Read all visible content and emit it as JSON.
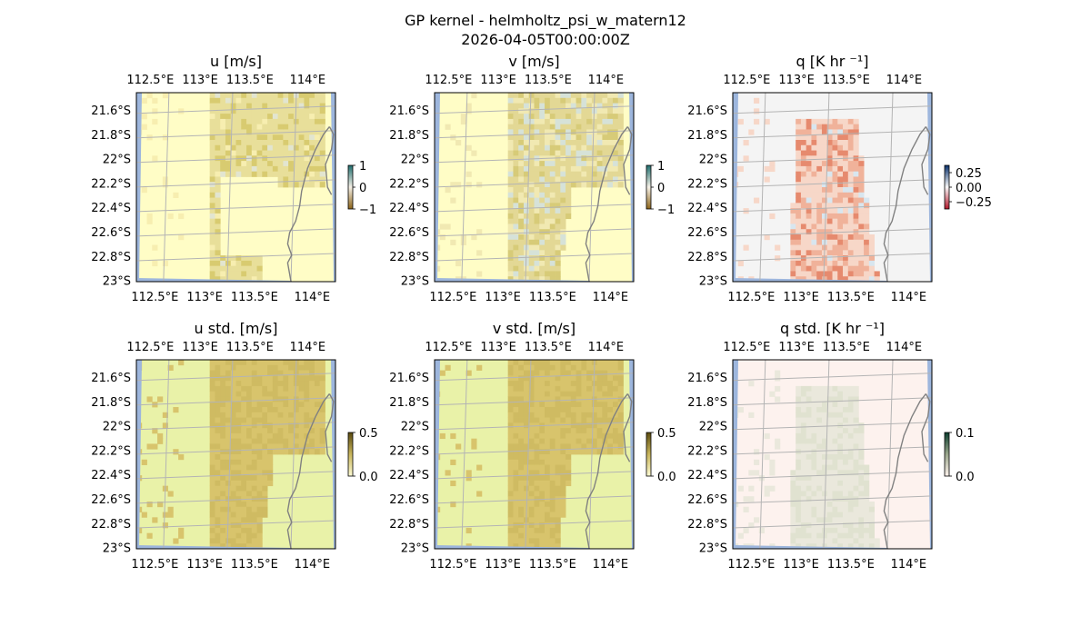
{
  "figure": {
    "title_line1": "GP kernel - helmholtz_psi_w_matern12",
    "title_line2": "2026-04-05T00:00:00Z"
  },
  "colors": {
    "ocean": "#9db6dd",
    "coast": "#808080",
    "grid": "#b4b4b4",
    "frame": "#000000"
  },
  "chart_data": [
    {
      "type": "heatmap",
      "id": "u",
      "title": "u [m/s]",
      "xticks": [
        "112.5°E",
        "113°E",
        "113.5°E",
        "114°E"
      ],
      "yticks": [
        "21.6°S",
        "21.8°S",
        "22°S",
        "22.2°S",
        "22.4°S",
        "22.6°S",
        "22.8°S",
        "23°S"
      ],
      "colorbar": {
        "ticks": [
          "1",
          "0",
          "−1"
        ],
        "range": [
          -1,
          1
        ],
        "colors": [
          "#1f6e6e",
          "#f5f0e6",
          "#8c6418"
        ]
      },
      "field": {
        "base": "#fffdc6",
        "bands": [
          [
            "#f7eeb0",
            0.05
          ],
          [
            "#e8df9a",
            0.7
          ],
          [
            "#d8cb70",
            0.2
          ],
          [
            "#e2e5d0",
            0.05
          ]
        ]
      }
    },
    {
      "type": "heatmap",
      "id": "v",
      "title": "v [m/s]",
      "xticks": [
        "112.5°E",
        "113°E",
        "113.5°E",
        "114°E"
      ],
      "yticks": [
        "21.6°S",
        "21.8°S",
        "22°S",
        "22.2°S",
        "22.4°S",
        "22.6°S",
        "22.8°S",
        "23°S"
      ],
      "colorbar": {
        "ticks": [
          "1",
          "0",
          "−1"
        ],
        "range": [
          -1,
          1
        ],
        "colors": [
          "#1f6e6e",
          "#f5f0e6",
          "#8c6418"
        ]
      },
      "field": {
        "base": "#fffdc6",
        "bands": [
          [
            "#f1e9b2",
            0.2
          ],
          [
            "#e3d895",
            0.5
          ],
          [
            "#d7cb78",
            0.15
          ],
          [
            "#d6e2d8",
            0.15
          ]
        ]
      }
    },
    {
      "type": "heatmap",
      "id": "q",
      "title": "q [K hr ⁻¹]",
      "xticks": [
        "112.5°E",
        "113°E",
        "113.5°E",
        "114°E"
      ],
      "yticks": [
        "21.6°S",
        "21.8°S",
        "22°S",
        "22.2°S",
        "22.4°S",
        "22.6°S",
        "22.8°S",
        "23°S"
      ],
      "colorbar": {
        "ticks": [
          "0.25",
          "0.00",
          "−0.25"
        ],
        "range": [
          -0.35,
          0.35
        ],
        "colors": [
          "#08306b",
          "#f7f7f7",
          "#b2182b"
        ]
      },
      "field": {
        "base": "#f4f4f4",
        "bands": [
          [
            "#f7d7c8",
            0.45
          ],
          [
            "#f0b29a",
            0.35
          ],
          [
            "#e68a6e",
            0.15
          ],
          [
            "#d8e6ef",
            0.05
          ]
        ]
      }
    },
    {
      "type": "heatmap",
      "id": "u_std",
      "title": "u std. [m/s]",
      "xticks": [
        "112.5°E",
        "113°E",
        "113.5°E",
        "114°E"
      ],
      "yticks": [
        "21.6°S",
        "21.8°S",
        "22°S",
        "22.2°S",
        "22.4°S",
        "22.6°S",
        "22.8°S",
        "23°S"
      ],
      "colorbar": {
        "ticks": [
          "0.5",
          "0.0"
        ],
        "range": [
          0,
          0.5
        ],
        "colors": [
          "#5a4a10",
          "#c9b65c",
          "#fdfbd3"
        ]
      },
      "field": {
        "base": "#e9f2a8",
        "bands": [
          [
            "#d8c46c",
            0.55
          ],
          [
            "#cfbb62",
            0.45
          ]
        ]
      }
    },
    {
      "type": "heatmap",
      "id": "v_std",
      "title": "v std. [m/s]",
      "xticks": [
        "112.5°E",
        "113°E",
        "113.5°E",
        "114°E"
      ],
      "yticks": [
        "21.6°S",
        "21.8°S",
        "22°S",
        "22.2°S",
        "22.4°S",
        "22.6°S",
        "22.8°S",
        "23°S"
      ],
      "colorbar": {
        "ticks": [
          "0.5",
          "0.0"
        ],
        "range": [
          0,
          0.5
        ],
        "colors": [
          "#5a4a10",
          "#c9b65c",
          "#fdfbd3"
        ]
      },
      "field": {
        "base": "#e9f2a8",
        "bands": [
          [
            "#d8c46c",
            0.55
          ],
          [
            "#cfbb62",
            0.45
          ]
        ]
      }
    },
    {
      "type": "heatmap",
      "id": "q_std",
      "title": "q std. [K hr ⁻¹]",
      "xticks": [
        "112.5°E",
        "113°E",
        "113.5°E",
        "114°E"
      ],
      "yticks": [
        "21.6°S",
        "21.8°S",
        "22°S",
        "22.2°S",
        "22.4°S",
        "22.6°S",
        "22.8°S",
        "23°S"
      ],
      "colorbar": {
        "ticks": [
          "0.1",
          "0.0"
        ],
        "range": [
          0,
          0.1
        ],
        "colors": [
          "#0b3d2e",
          "#9aa68c",
          "#fdf2ec"
        ]
      },
      "field": {
        "base": "#fdf2ee",
        "bands": [
          [
            "#eae8dc",
            0.6
          ],
          [
            "#e0e2d0",
            0.4
          ]
        ]
      }
    }
  ]
}
